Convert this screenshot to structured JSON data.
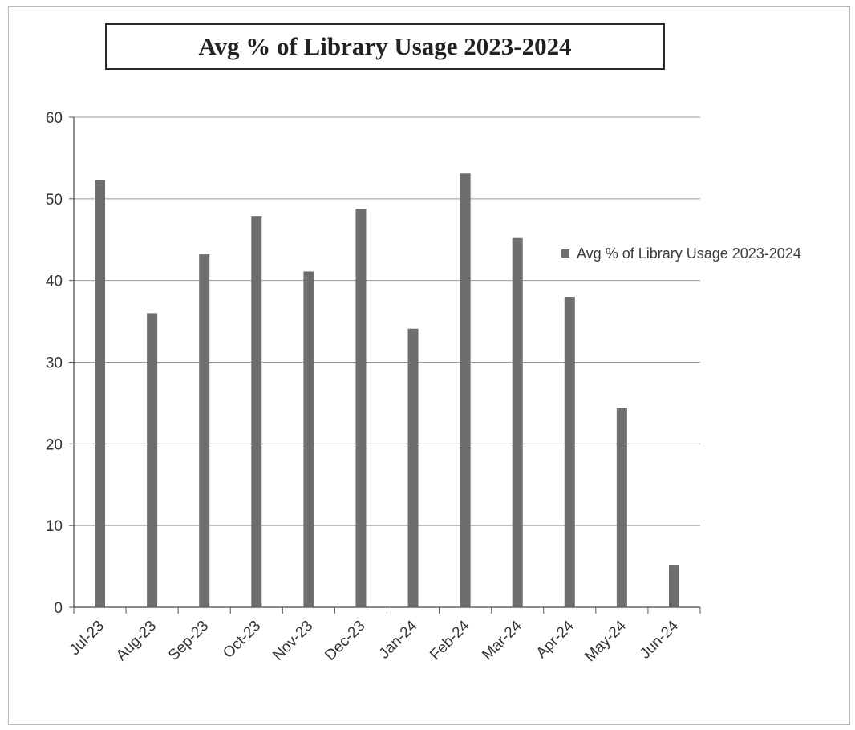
{
  "chart_data": {
    "type": "bar",
    "title": "Avg % of Library Usage 2023-2024",
    "xlabel": "",
    "ylabel": "",
    "categories": [
      "Jul-23",
      "Aug-23",
      "Sep-23",
      "Oct-23",
      "Nov-23",
      "Dec-23",
      "Jan-24",
      "Feb-24",
      "Mar-24",
      "Apr-24",
      "May-24",
      "Jun-24"
    ],
    "series": [
      {
        "name": "Avg % of Library Usage 2023-2024",
        "values": [
          52.3,
          36.0,
          43.2,
          47.9,
          41.1,
          48.8,
          34.1,
          53.1,
          45.2,
          38.0,
          24.4,
          5.2
        ]
      }
    ],
    "ylim": [
      0,
      60
    ],
    "yticks": [
      0,
      10,
      20,
      30,
      40,
      50,
      60
    ],
    "grid": true,
    "legend": "right",
    "bar_color": "#6e6e6e",
    "gridline_color": "#9a9a9a"
  }
}
